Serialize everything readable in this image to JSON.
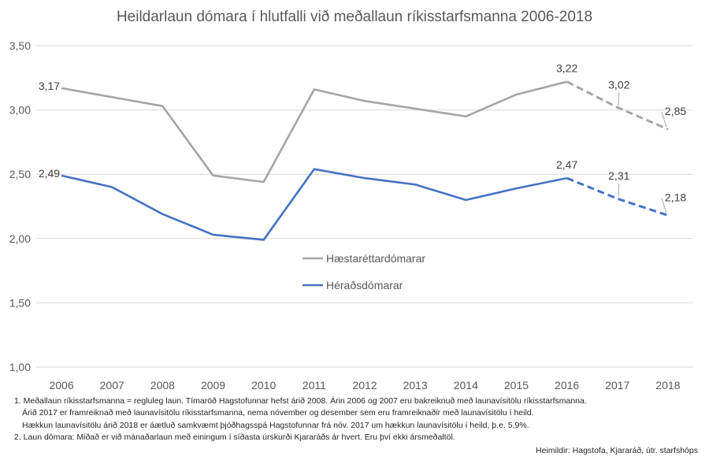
{
  "chart_data": {
    "type": "line",
    "title": "Heildarlaun dómara í hlutfalli við meðallaun ríkisstarfsmanna 2006-2018",
    "categories": [
      "2006",
      "2007",
      "2008",
      "2009",
      "2010",
      "2011",
      "2012",
      "2013",
      "2014",
      "2015",
      "2016",
      "2017",
      "2018"
    ],
    "ylim": [
      1.0,
      3.5
    ],
    "yticks": [
      "1,00",
      "1,50",
      "2,00",
      "2,50",
      "3,00",
      "3,50"
    ],
    "grid": true,
    "legend_position": "center",
    "projected_from": "2016",
    "series": [
      {
        "name": "Hæstaréttardómarar",
        "color": "#A5A5A5",
        "values": [
          3.17,
          3.1,
          3.03,
          2.49,
          2.44,
          3.16,
          3.07,
          3.01,
          2.95,
          3.12,
          3.22,
          3.02,
          2.85
        ],
        "data_labels": {
          "2006": "3,17",
          "2016": "3,22",
          "2017": "3,02",
          "2018": "2,85"
        }
      },
      {
        "name": "Héraðsdómarar",
        "color": "#4472C4",
        "values": [
          2.49,
          2.4,
          2.19,
          2.03,
          1.99,
          2.54,
          2.47,
          2.42,
          2.3,
          2.39,
          2.47,
          2.31,
          2.18
        ],
        "data_labels": {
          "2006": "2,49",
          "2016": "2,47",
          "2017": "2,31",
          "2018": "2,18"
        }
      }
    ]
  },
  "notes": [
    "1. Meðallaun ríkisstarfsmanna = regluleg laun. Tímaröð Hagstofunnar hefst árið 2008. Árin 2006 og 2007 eru bakreiknuð með launavísitölu ríkisstarfsmanna.",
    "Árið 2017 er framreiknað með launavísitölu ríkisstarfsmanna, nema nóvember og desember sem eru framreiknaðir með launavísitölu í heild.",
    "Hækkun launavísitölu árið 2018 er áætluð samkvæmt þjóðhagsspá Hagstofunnar frá nóv. 2017 um hækkun launavísitölu í heild, þ.e. 5,9%.",
    "2. Laun dómara: Miðað er við mánaðarlaun með einingum í síðasta úrskurði Kjararáðs ár hvert. Eru því ekki ársmeðaltöl."
  ],
  "sources": "Heimildir: Hagstofa, Kjararáð, útr. starfshóps"
}
